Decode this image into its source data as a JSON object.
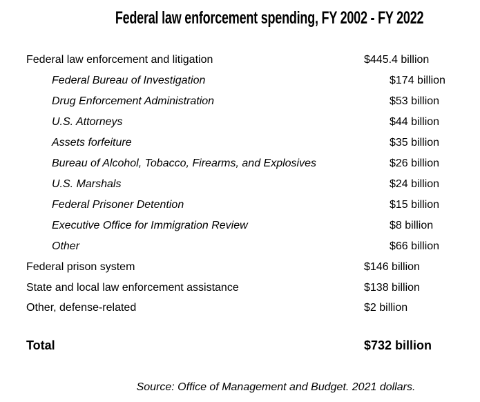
{
  "title": "Federal law enforcement spending, FY 2002 - FY 2022",
  "rows": [
    {
      "label": "Federal law enforcement and litigation",
      "value": "$445.4 billion",
      "level": 0
    },
    {
      "label": "Federal Bureau of Investigation",
      "value": "$174 billion",
      "level": 1
    },
    {
      "label": "Drug Enforcement Administration",
      "value": "$53 billion",
      "level": 1
    },
    {
      "label": "U.S. Attorneys",
      "value": "$44 billion",
      "level": 1
    },
    {
      "label": "Assets forfeiture",
      "value": "$35 billion",
      "level": 1
    },
    {
      "label": "Bureau of Alcohol, Tobacco, Firearms, and Explosives",
      "value": "$26 billion",
      "level": 1
    },
    {
      "label": "U.S. Marshals",
      "value": "$24 billion",
      "level": 1
    },
    {
      "label": "Federal Prisoner Detention",
      "value": "$15 billion",
      "level": 1
    },
    {
      "label": "Executive Office for Immigration Review",
      "value": "$8 billion",
      "level": 1
    },
    {
      "label": "Other",
      "value": "$66 billion",
      "level": 1
    },
    {
      "label": "Federal prison system",
      "value": "$146 billion",
      "level": 0
    },
    {
      "label": "State and local law enforcement assistance",
      "value": "$138 billion",
      "level": 0
    },
    {
      "label": "Other, defense-related",
      "value": "$2 billion",
      "level": 0
    }
  ],
  "total": {
    "label": "Total",
    "value": "$732 billion"
  },
  "source": "Source: Office of Management and Budget. 2021 dollars."
}
